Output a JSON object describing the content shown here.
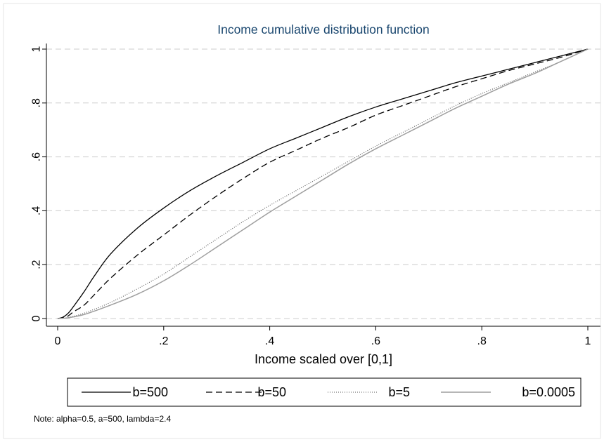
{
  "chart_data": {
    "type": "line",
    "title": "Income cumulative distribution function",
    "xlabel": "Income scaled over [0,1]",
    "ylabel": "",
    "xlim": [
      0,
      1
    ],
    "ylim": [
      0,
      1
    ],
    "xticks": [
      0,
      0.2,
      0.4,
      0.6,
      0.8,
      1
    ],
    "xtick_labels": [
      "0",
      ".2",
      ".4",
      ".6",
      ".8",
      "1"
    ],
    "yticks": [
      0,
      0.2,
      0.4,
      0.6,
      0.8,
      1
    ],
    "ytick_labels": [
      "0",
      ".2",
      ".4",
      ".6",
      ".8",
      "1"
    ],
    "grid": "horizontal dashed",
    "legend_position": "bottom",
    "note": "Note: alpha=0.5, a=500, lambda=2.4",
    "title_color": "#1a476f",
    "series": [
      {
        "name": "b=500",
        "color": "#000000",
        "style": "solid",
        "x": [
          0,
          0.01,
          0.02,
          0.03,
          0.05,
          0.07,
          0.1,
          0.15,
          0.2,
          0.25,
          0.3,
          0.35,
          0.4,
          0.45,
          0.5,
          0.55,
          0.6,
          0.65,
          0.7,
          0.75,
          0.8,
          0.85,
          0.9,
          0.95,
          1
        ],
        "y": [
          0,
          0.005,
          0.02,
          0.045,
          0.1,
          0.16,
          0.24,
          0.335,
          0.41,
          0.475,
          0.53,
          0.58,
          0.63,
          0.67,
          0.71,
          0.75,
          0.785,
          0.815,
          0.845,
          0.875,
          0.9,
          0.925,
          0.95,
          0.975,
          1
        ]
      },
      {
        "name": "b=50",
        "color": "#000000",
        "style": "dashed",
        "x": [
          0,
          0.01,
          0.02,
          0.03,
          0.05,
          0.07,
          0.1,
          0.15,
          0.2,
          0.25,
          0.3,
          0.35,
          0.4,
          0.45,
          0.5,
          0.55,
          0.6,
          0.65,
          0.7,
          0.75,
          0.8,
          0.85,
          0.9,
          0.95,
          1
        ],
        "y": [
          0,
          0.003,
          0.01,
          0.025,
          0.05,
          0.09,
          0.15,
          0.235,
          0.31,
          0.385,
          0.455,
          0.52,
          0.58,
          0.625,
          0.67,
          0.71,
          0.755,
          0.79,
          0.825,
          0.86,
          0.89,
          0.92,
          0.945,
          0.97,
          1
        ]
      },
      {
        "name": "b=5",
        "color": "#555555",
        "style": "dotted",
        "x": [
          0,
          0.01,
          0.02,
          0.05,
          0.1,
          0.15,
          0.2,
          0.25,
          0.3,
          0.35,
          0.4,
          0.45,
          0.5,
          0.55,
          0.6,
          0.65,
          0.7,
          0.75,
          0.8,
          0.85,
          0.9,
          0.95,
          1
        ],
        "y": [
          0,
          0.001,
          0.004,
          0.02,
          0.06,
          0.11,
          0.165,
          0.23,
          0.295,
          0.36,
          0.42,
          0.475,
          0.53,
          0.585,
          0.64,
          0.69,
          0.74,
          0.79,
          0.835,
          0.875,
          0.915,
          0.955,
          1
        ]
      },
      {
        "name": "b=0.0005",
        "color": "#9e9e9e",
        "style": "solid",
        "x": [
          0,
          0.01,
          0.02,
          0.05,
          0.1,
          0.15,
          0.2,
          0.25,
          0.3,
          0.35,
          0.4,
          0.45,
          0.5,
          0.55,
          0.6,
          0.65,
          0.7,
          0.75,
          0.8,
          0.85,
          0.9,
          0.95,
          1
        ],
        "y": [
          0,
          0.001,
          0.003,
          0.015,
          0.05,
          0.09,
          0.14,
          0.2,
          0.265,
          0.33,
          0.395,
          0.455,
          0.515,
          0.575,
          0.63,
          0.68,
          0.73,
          0.78,
          0.825,
          0.87,
          0.91,
          0.955,
          1
        ]
      }
    ]
  }
}
